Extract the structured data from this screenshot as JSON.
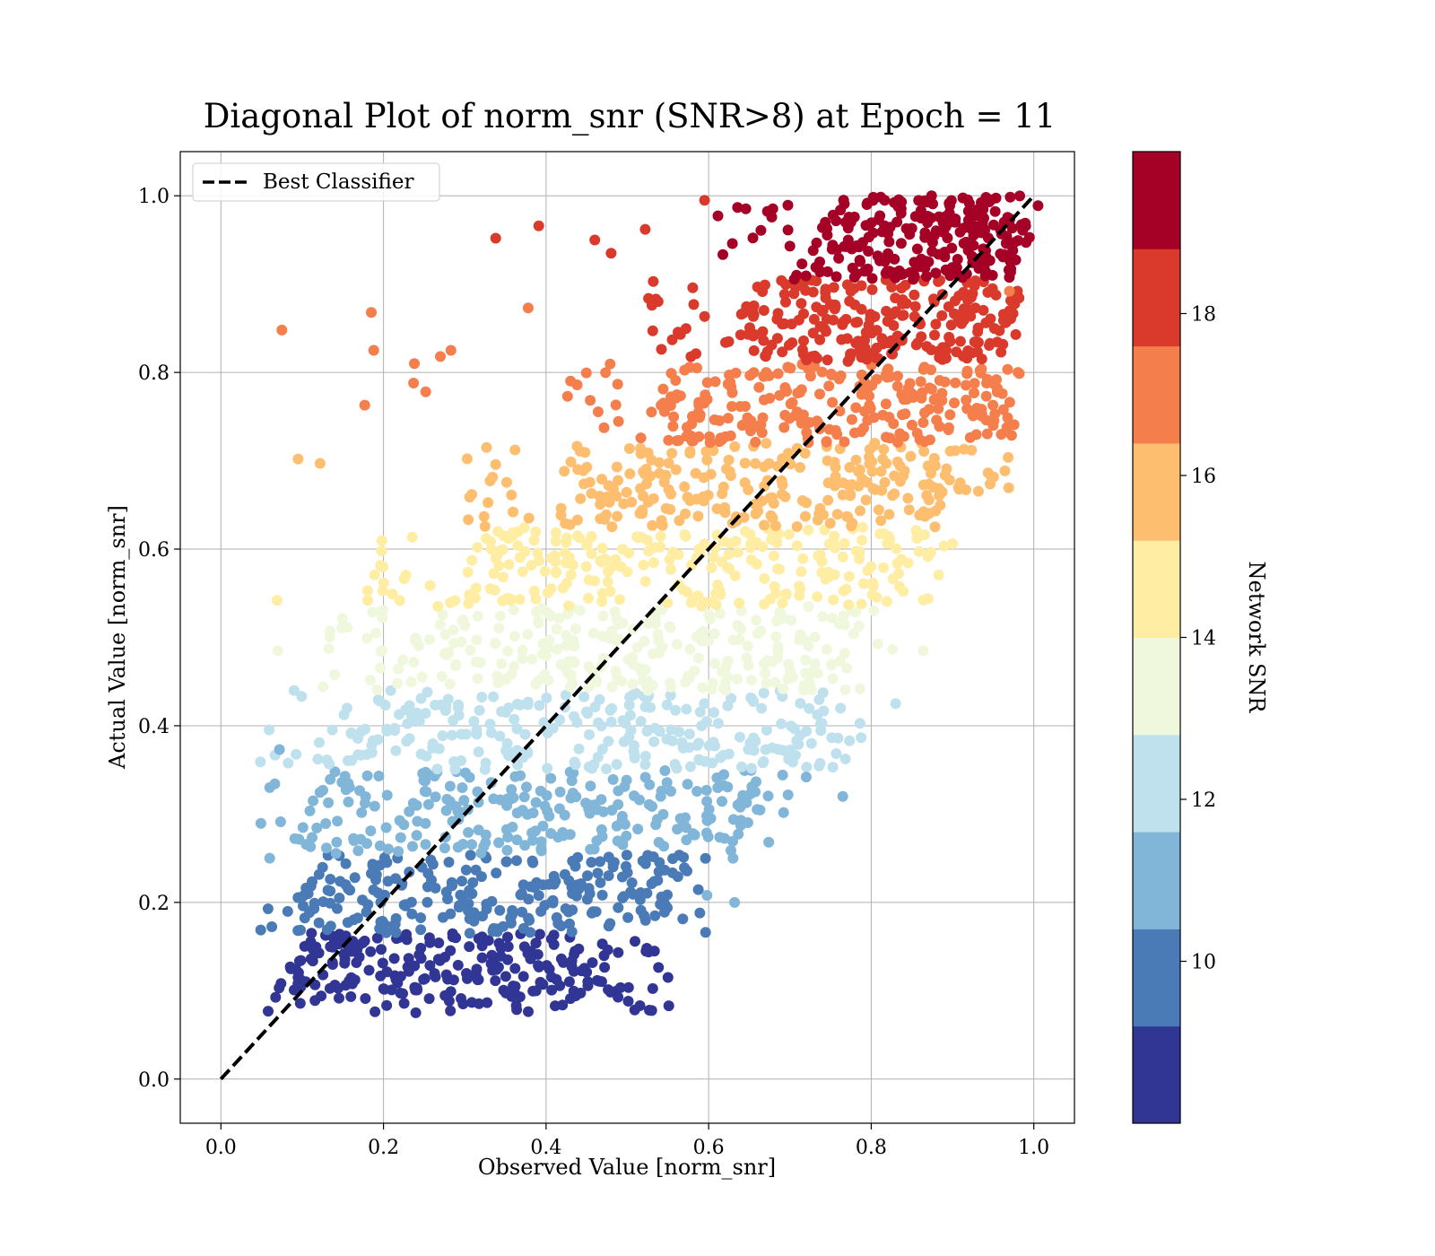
{
  "chart_data": {
    "type": "scatter",
    "title": "Diagonal Plot of norm_snr (SNR>8) at Epoch = 11",
    "xlabel": "Observed Value [norm_snr]",
    "ylabel": "Actual Value [norm_snr]",
    "xlim": [
      -0.05,
      1.05
    ],
    "ylim": [
      -0.05,
      1.05
    ],
    "xticks": [
      "0.0",
      "0.2",
      "0.4",
      "0.6",
      "0.8",
      "1.0"
    ],
    "yticks": [
      "0.0",
      "0.2",
      "0.4",
      "0.6",
      "0.8",
      "1.0"
    ],
    "grid": true,
    "legend": {
      "placement": "top-left",
      "entries": [
        "Best Classifier"
      ]
    },
    "reference_line": {
      "name": "Best Classifier",
      "x": [
        0,
        1
      ],
      "y": [
        0,
        1
      ],
      "style": "dashed",
      "color": "#000000"
    },
    "colorbar": {
      "label": "Network SNR",
      "range": [
        8,
        20
      ],
      "ticks": [
        "10",
        "12",
        "14",
        "16",
        "18"
      ],
      "tick_values": [
        10,
        12,
        14,
        16,
        18
      ],
      "colors": [
        "#313695",
        "#4a7bb7",
        "#81b6d9",
        "#bee1ed",
        "#eff8dd",
        "#feeda2",
        "#fdbe70",
        "#f57e4d",
        "#d93a2c",
        "#a50026"
      ]
    },
    "bands": [
      {
        "snr": 8.5,
        "y": [
          0.075,
          0.165
        ],
        "x": [
          0.05,
          0.47
        ],
        "color": "#313695"
      },
      {
        "snr": 9.5,
        "y": [
          0.165,
          0.255
        ],
        "x": [
          0.065,
          0.54
        ],
        "color": "#4a7bb7"
      },
      {
        "snr": 10.5,
        "y": [
          0.255,
          0.35
        ],
        "x": [
          0.075,
          0.63
        ],
        "color": "#81b6d9"
      },
      {
        "snr": 11.5,
        "y": [
          0.35,
          0.44
        ],
        "x": [
          0.1,
          0.72
        ],
        "color": "#bee1ed"
      },
      {
        "snr": 12.5,
        "y": [
          0.44,
          0.535
        ],
        "x": [
          0.2,
          0.76
        ],
        "color": "#eff8dd"
      },
      {
        "snr": 13.5,
        "y": [
          0.535,
          0.625
        ],
        "x": [
          0.27,
          0.84
        ],
        "color": "#feeda2"
      },
      {
        "snr": 14.5,
        "y": [
          0.625,
          0.72
        ],
        "x": [
          0.38,
          0.9
        ],
        "color": "#fdbe70"
      },
      {
        "snr": 15.5,
        "y": [
          0.72,
          0.81
        ],
        "x": [
          0.5,
          0.94
        ],
        "color": "#f57e4d"
      },
      {
        "snr": 16.5,
        "y": [
          0.81,
          0.905
        ],
        "x": [
          0.6,
          0.96
        ],
        "color": "#d93a2c"
      },
      {
        "snr": 17.5,
        "y": [
          0.905,
          1.0
        ],
        "x": [
          0.7,
          0.98
        ],
        "color": "#a50026"
      }
    ],
    "outliers": [
      {
        "x": 0.075,
        "y": 0.848,
        "snr": 17.5
      },
      {
        "x": 0.185,
        "y": 0.868,
        "snr": 17.5
      },
      {
        "x": 0.188,
        "y": 0.825,
        "snr": 17.5
      },
      {
        "x": 0.177,
        "y": 0.763,
        "snr": 16.5
      },
      {
        "x": 0.27,
        "y": 0.818,
        "snr": 17.5
      },
      {
        "x": 0.283,
        "y": 0.825,
        "snr": 17.5
      },
      {
        "x": 0.238,
        "y": 0.81,
        "snr": 16.5
      },
      {
        "x": 0.252,
        "y": 0.778,
        "snr": 16.5
      },
      {
        "x": 0.237,
        "y": 0.788,
        "snr": 16.5
      },
      {
        "x": 0.338,
        "y": 0.952,
        "snr": 18.5
      },
      {
        "x": 0.391,
        "y": 0.966,
        "snr": 18.5
      },
      {
        "x": 0.378,
        "y": 0.873,
        "snr": 17.5
      },
      {
        "x": 0.522,
        "y": 0.962,
        "snr": 18.5
      },
      {
        "x": 0.46,
        "y": 0.95,
        "snr": 18.5
      },
      {
        "x": 0.095,
        "y": 0.702,
        "snr": 15.5
      },
      {
        "x": 0.122,
        "y": 0.697,
        "snr": 15.5
      },
      {
        "x": 0.069,
        "y": 0.542,
        "snr": 14.5
      },
      {
        "x": 0.07,
        "y": 0.485,
        "snr": 13.5
      },
      {
        "x": 0.09,
        "y": 0.44,
        "snr": 12.5
      },
      {
        "x": 0.072,
        "y": 0.373,
        "snr": 11.5
      },
      {
        "x": 0.06,
        "y": 0.33,
        "snr": 11.5
      },
      {
        "x": 0.06,
        "y": 0.25,
        "snr": 10.5
      },
      {
        "x": 0.83,
        "y": 0.425,
        "snr": 12.5
      },
      {
        "x": 0.864,
        "y": 0.485,
        "snr": 13.5
      },
      {
        "x": 0.765,
        "y": 0.32,
        "snr": 11.5
      },
      {
        "x": 0.72,
        "y": 0.342,
        "snr": 11.5
      },
      {
        "x": 0.632,
        "y": 0.2,
        "snr": 10.5
      },
      {
        "x": 0.598,
        "y": 0.208,
        "snr": 10.5
      },
      {
        "x": 0.527,
        "y": 0.078,
        "snr": 8.5
      },
      {
        "x": 0.551,
        "y": 0.083,
        "snr": 8.5
      },
      {
        "x": 0.55,
        "y": 0.115,
        "snr": 8.5
      },
      {
        "x": 0.63,
        "y": 0.25,
        "snr": 10.5
      },
      {
        "x": 0.595,
        "y": 0.995,
        "snr": 18.5
      },
      {
        "x": 0.48,
        "y": 0.935,
        "snr": 18.5
      },
      {
        "x": 0.9,
        "y": 0.606,
        "snr": 14.5
      },
      {
        "x": 0.97,
        "y": 0.892,
        "snr": 17.5
      },
      {
        "x": 0.96,
        "y": 0.73,
        "snr": 16.5
      },
      {
        "x": 0.95,
        "y": 0.74,
        "snr": 16.5
      }
    ]
  }
}
